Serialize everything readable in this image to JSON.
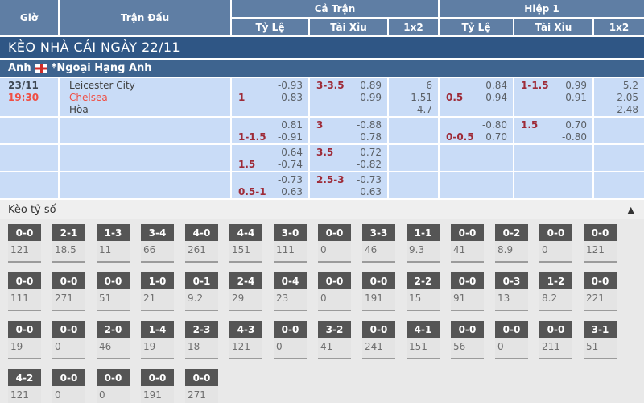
{
  "colors": {
    "header_blue": "#5f7ea4",
    "banner_navy": "#2f5685",
    "league_blue": "#3e648f",
    "row_light_blue": "#c9dcf7",
    "bright_red": "#f04f44",
    "handicap_red": "#9e2b38",
    "chip_dark": "#555555"
  },
  "table": {
    "header": {
      "col_time": "Giờ",
      "col_match": "Trận Đấu",
      "group_full": "Cả Trận",
      "group_half": "Hiệp 1",
      "sub_odds": "Tỷ Lệ",
      "sub_ou": "Tài Xỉu",
      "sub_1x2": "1x2"
    },
    "banner": "KÈO NHÀ CÁI NGÀY 22/11",
    "league": {
      "country": "Anh",
      "flag_icon": "england-flag",
      "name": "*Ngoại Hạng Anh"
    },
    "match": {
      "date": "23/11",
      "time": "19:30",
      "home": "Leicester City",
      "away": "Chelsea",
      "draw_label": "Hòa"
    },
    "rows": [
      {
        "ft_hdp": {
          "hdp": "1",
          "top": "-0.93",
          "bottom": "0.83"
        },
        "ft_ou": {
          "hdp": "3-3.5",
          "top": "0.89",
          "bottom": "-0.99"
        },
        "ft_1x2": [
          "6",
          "1.51",
          "4.7"
        ],
        "h1_hdp": {
          "hdp": "0.5",
          "top": "0.84",
          "bottom": "-0.94"
        },
        "h1_ou": {
          "hdp": "1-1.5",
          "top": "0.99",
          "bottom": "0.91"
        },
        "h1_1x2": [
          "5.2",
          "2.05",
          "2.48"
        ]
      },
      {
        "ft_hdp": {
          "hdp": "1-1.5",
          "top": "0.81",
          "bottom": "-0.91"
        },
        "ft_ou": {
          "hdp": "3",
          "top": "-0.88",
          "bottom": "0.78"
        },
        "ft_1x2": [],
        "h1_hdp": {
          "hdp": "0-0.5",
          "top": "-0.80",
          "bottom": "0.70"
        },
        "h1_ou": {
          "hdp": "1.5",
          "top": "0.70",
          "bottom": "-0.80"
        },
        "h1_1x2": []
      },
      {
        "ft_hdp": {
          "hdp": "1.5",
          "top": "0.64",
          "bottom": "-0.74"
        },
        "ft_ou": {
          "hdp": "3.5",
          "top": "0.72",
          "bottom": "-0.82"
        },
        "ft_1x2": [],
        "h1_hdp": null,
        "h1_ou": null,
        "h1_1x2": []
      },
      {
        "ft_hdp": {
          "hdp": "0.5-1",
          "top": "-0.73",
          "bottom": "0.63"
        },
        "ft_ou": {
          "hdp": "2.5-3",
          "top": "-0.73",
          "bottom": "0.63"
        },
        "ft_1x2": [],
        "h1_hdp": null,
        "h1_ou": null,
        "h1_1x2": []
      }
    ]
  },
  "score_section": {
    "title": "Kèo tỷ số",
    "collapse_icon": "▲",
    "rows": [
      [
        {
          "score": "0-0",
          "value": "121"
        },
        {
          "score": "2-1",
          "value": "18.5"
        },
        {
          "score": "1-3",
          "value": "11"
        },
        {
          "score": "3-4",
          "value": "66"
        },
        {
          "score": "4-0",
          "value": "261"
        },
        {
          "score": "4-4",
          "value": "151"
        },
        {
          "score": "3-0",
          "value": "111"
        },
        {
          "score": "0-0",
          "value": "0"
        },
        {
          "score": "3-3",
          "value": "46"
        },
        {
          "score": "1-1",
          "value": "9.3"
        },
        {
          "score": "0-0",
          "value": "41"
        },
        {
          "score": "0-2",
          "value": "8.9"
        },
        {
          "score": "0-0",
          "value": "0"
        },
        {
          "score": "0-0",
          "value": "121"
        }
      ],
      [
        {
          "score": "0-0",
          "value": "111"
        },
        {
          "score": "0-0",
          "value": "271"
        },
        {
          "score": "0-0",
          "value": "51"
        },
        {
          "score": "1-0",
          "value": "21"
        },
        {
          "score": "0-1",
          "value": "9.2"
        },
        {
          "score": "2-4",
          "value": "29"
        },
        {
          "score": "0-4",
          "value": "23"
        },
        {
          "score": "0-0",
          "value": "0"
        },
        {
          "score": "0-0",
          "value": "191"
        },
        {
          "score": "2-2",
          "value": "15"
        },
        {
          "score": "0-0",
          "value": "91"
        },
        {
          "score": "0-3",
          "value": "13"
        },
        {
          "score": "1-2",
          "value": "8.2"
        },
        {
          "score": "0-0",
          "value": "221"
        }
      ],
      [
        {
          "score": "0-0",
          "value": "19"
        },
        {
          "score": "0-0",
          "value": "0"
        },
        {
          "score": "2-0",
          "value": "46"
        },
        {
          "score": "1-4",
          "value": "19"
        },
        {
          "score": "2-3",
          "value": "18"
        },
        {
          "score": "4-3",
          "value": "121"
        },
        {
          "score": "0-0",
          "value": "0"
        },
        {
          "score": "3-2",
          "value": "41"
        },
        {
          "score": "0-0",
          "value": "241"
        },
        {
          "score": "4-1",
          "value": "151"
        },
        {
          "score": "0-0",
          "value": "56"
        },
        {
          "score": "0-0",
          "value": "0"
        },
        {
          "score": "0-0",
          "value": "211"
        },
        {
          "score": "3-1",
          "value": "51"
        }
      ],
      [
        {
          "score": "4-2",
          "value": "121"
        },
        {
          "score": "0-0",
          "value": "0"
        },
        {
          "score": "0-0",
          "value": "0"
        },
        {
          "score": "0-0",
          "value": "191"
        },
        {
          "score": "0-0",
          "value": "271"
        }
      ]
    ]
  }
}
